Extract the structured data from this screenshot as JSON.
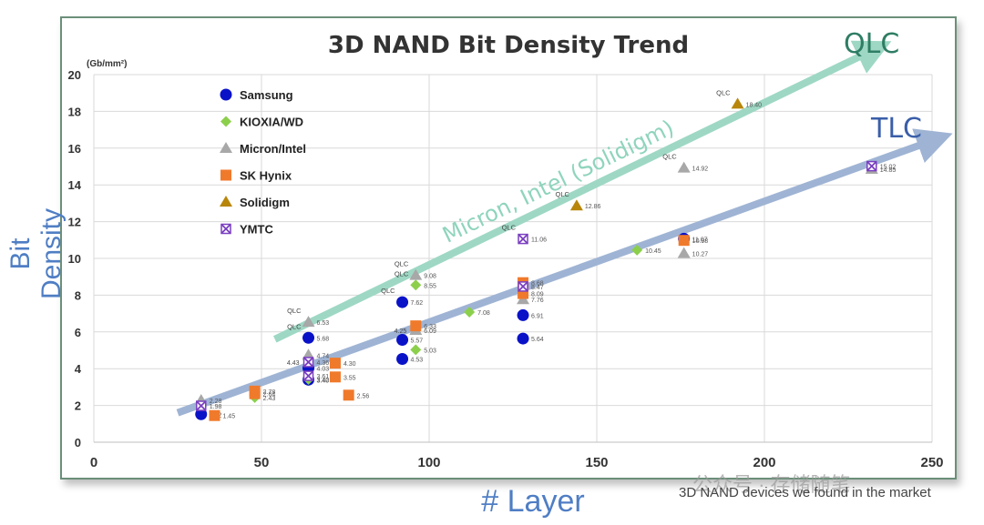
{
  "chart_data": {
    "type": "scatter",
    "title": "3D NAND Bit Density Trend",
    "ylabel": "Bit Density",
    "yunit": "(Gb/mm²)",
    "xlabel": "# Layer",
    "xlim": [
      0,
      250
    ],
    "ylim": [
      0,
      20
    ],
    "xticks": [
      0,
      50,
      100,
      150,
      200,
      250
    ],
    "yticks": [
      0,
      2,
      4,
      6,
      8,
      10,
      12,
      14,
      16,
      18,
      20
    ],
    "legend_position": "top-left",
    "series": [
      {
        "name": "Samsung",
        "marker": "circle",
        "color": "#0a12c8",
        "points": [
          {
            "x": 32,
            "y": 1.52,
            "label": "1.52"
          },
          {
            "x": 64,
            "y": 3.4,
            "label": "3.40"
          },
          {
            "x": 64,
            "y": 4.03,
            "label": "4.03"
          },
          {
            "x": 64,
            "y": 5.68,
            "label": "5.68"
          },
          {
            "x": 92,
            "y": 4.53,
            "label": "4.53"
          },
          {
            "x": 92,
            "y": 5.57,
            "label": "5.57"
          },
          {
            "x": 92,
            "y": 7.62,
            "label": "7.62"
          },
          {
            "x": 128,
            "y": 5.64,
            "label": "5.64"
          },
          {
            "x": 128,
            "y": 6.91,
            "label": "6.91"
          },
          {
            "x": 176,
            "y": 11.07,
            "label": "11.07"
          }
        ]
      },
      {
        "name": "KIOXIA/WD",
        "marker": "diamond",
        "color": "#8ccf4c",
        "points": [
          {
            "x": 48,
            "y": 2.43,
            "label": "2.43"
          },
          {
            "x": 64,
            "y": 3.42,
            "label": "3.42"
          },
          {
            "x": 96,
            "y": 5.03,
            "label": "5.03"
          },
          {
            "x": 96,
            "y": 8.55,
            "label": "8.55"
          },
          {
            "x": 112,
            "y": 7.08,
            "label": "7.08"
          },
          {
            "x": 162,
            "y": 10.45,
            "label": "10.45"
          }
        ]
      },
      {
        "name": "Micron/Intel",
        "marker": "triangle",
        "color": "#a8a8a8",
        "points": [
          {
            "x": 32,
            "y": 2.28,
            "label": "2.28"
          },
          {
            "x": 64,
            "y": 4.74,
            "label": "4.74"
          },
          {
            "x": 64,
            "y": 6.53,
            "label": "6.53"
          },
          {
            "x": 96,
            "y": 6.09,
            "label": "6.09"
          },
          {
            "x": 96,
            "y": 9.08,
            "label": "9.08"
          },
          {
            "x": 128,
            "y": 7.76,
            "label": "7.76"
          },
          {
            "x": 176,
            "y": 10.27,
            "label": "10.27"
          },
          {
            "x": 176,
            "y": 14.92,
            "label": "14.92"
          },
          {
            "x": 232,
            "y": 14.85,
            "label": "14.85"
          }
        ]
      },
      {
        "name": "SK Hynix",
        "marker": "square",
        "color": "#f07a2c",
        "points": [
          {
            "x": 36,
            "y": 1.45,
            "label": "1.45"
          },
          {
            "x": 48,
            "y": 2.64,
            "label": "2.64"
          },
          {
            "x": 48,
            "y": 2.78,
            "label": "2.78"
          },
          {
            "x": 72,
            "y": 3.55,
            "label": "3.55"
          },
          {
            "x": 72,
            "y": 4.3,
            "label": "4.30"
          },
          {
            "x": 76,
            "y": 2.56,
            "label": "2.56"
          },
          {
            "x": 96,
            "y": 6.33,
            "label": "6.33"
          },
          {
            "x": 128,
            "y": 8.09,
            "label": "8.09"
          },
          {
            "x": 128,
            "y": 8.68,
            "label": "8.68"
          },
          {
            "x": 176,
            "y": 10.98,
            "label": "10.98"
          }
        ]
      },
      {
        "name": "Solidigm",
        "marker": "triangle",
        "color": "#b8860b",
        "points": [
          {
            "x": 144,
            "y": 12.86,
            "label": "12.86"
          },
          {
            "x": 192,
            "y": 18.4,
            "label": "18.40"
          }
        ]
      },
      {
        "name": "YMTC",
        "marker": "xsquare",
        "color": "#7a3fc0",
        "points": [
          {
            "x": 32,
            "y": 1.98,
            "label": "1.98"
          },
          {
            "x": 64,
            "y": 3.61,
            "label": "3.61"
          },
          {
            "x": 64,
            "y": 4.36,
            "label": "4.36"
          },
          {
            "x": 128,
            "y": 8.47,
            "label": "8.47"
          },
          {
            "x": 128,
            "y": 11.06,
            "label": "11.06"
          },
          {
            "x": 232,
            "y": 15.02,
            "label": "15.02"
          }
        ]
      }
    ],
    "annotations": [
      {
        "text": "QLC",
        "x": 64,
        "y": 6.53
      },
      {
        "text": "QLC",
        "x": 64,
        "y": 5.68
      },
      {
        "text": "QLC",
        "x": 96,
        "y": 9.08
      },
      {
        "text": "QLC",
        "x": 96,
        "y": 8.55
      },
      {
        "text": "QLC",
        "x": 92,
        "y": 7.62
      },
      {
        "text": "QLC",
        "x": 128,
        "y": 11.06
      },
      {
        "text": "QLC",
        "x": 144,
        "y": 12.86
      },
      {
        "text": "QLC",
        "x": 176,
        "y": 14.92
      },
      {
        "text": "QLC",
        "x": 192,
        "y": 18.4
      },
      {
        "text": "4.43",
        "x": 64,
        "y": 4.36
      },
      {
        "text": "4.25",
        "x": 96,
        "y": 6.09
      }
    ],
    "trend_lines": [
      {
        "name": "TLC",
        "label": "TLC",
        "from": [
          25,
          1.6
        ],
        "to": [
          250,
          16.4
        ],
        "color": "#9fb4d4",
        "label_color": "#3a5ea8"
      },
      {
        "name": "QLC",
        "label": "QLC",
        "from": [
          54,
          5.6
        ],
        "to": [
          232,
          21.3
        ],
        "color": "#9ed8c4",
        "label_color": "#2e7d64",
        "line_text": "Micron, Intel (Solidigm)"
      }
    ]
  },
  "footnote": "3D NAND devices we found in the market",
  "watermark": "公众号 · 存储随笔"
}
